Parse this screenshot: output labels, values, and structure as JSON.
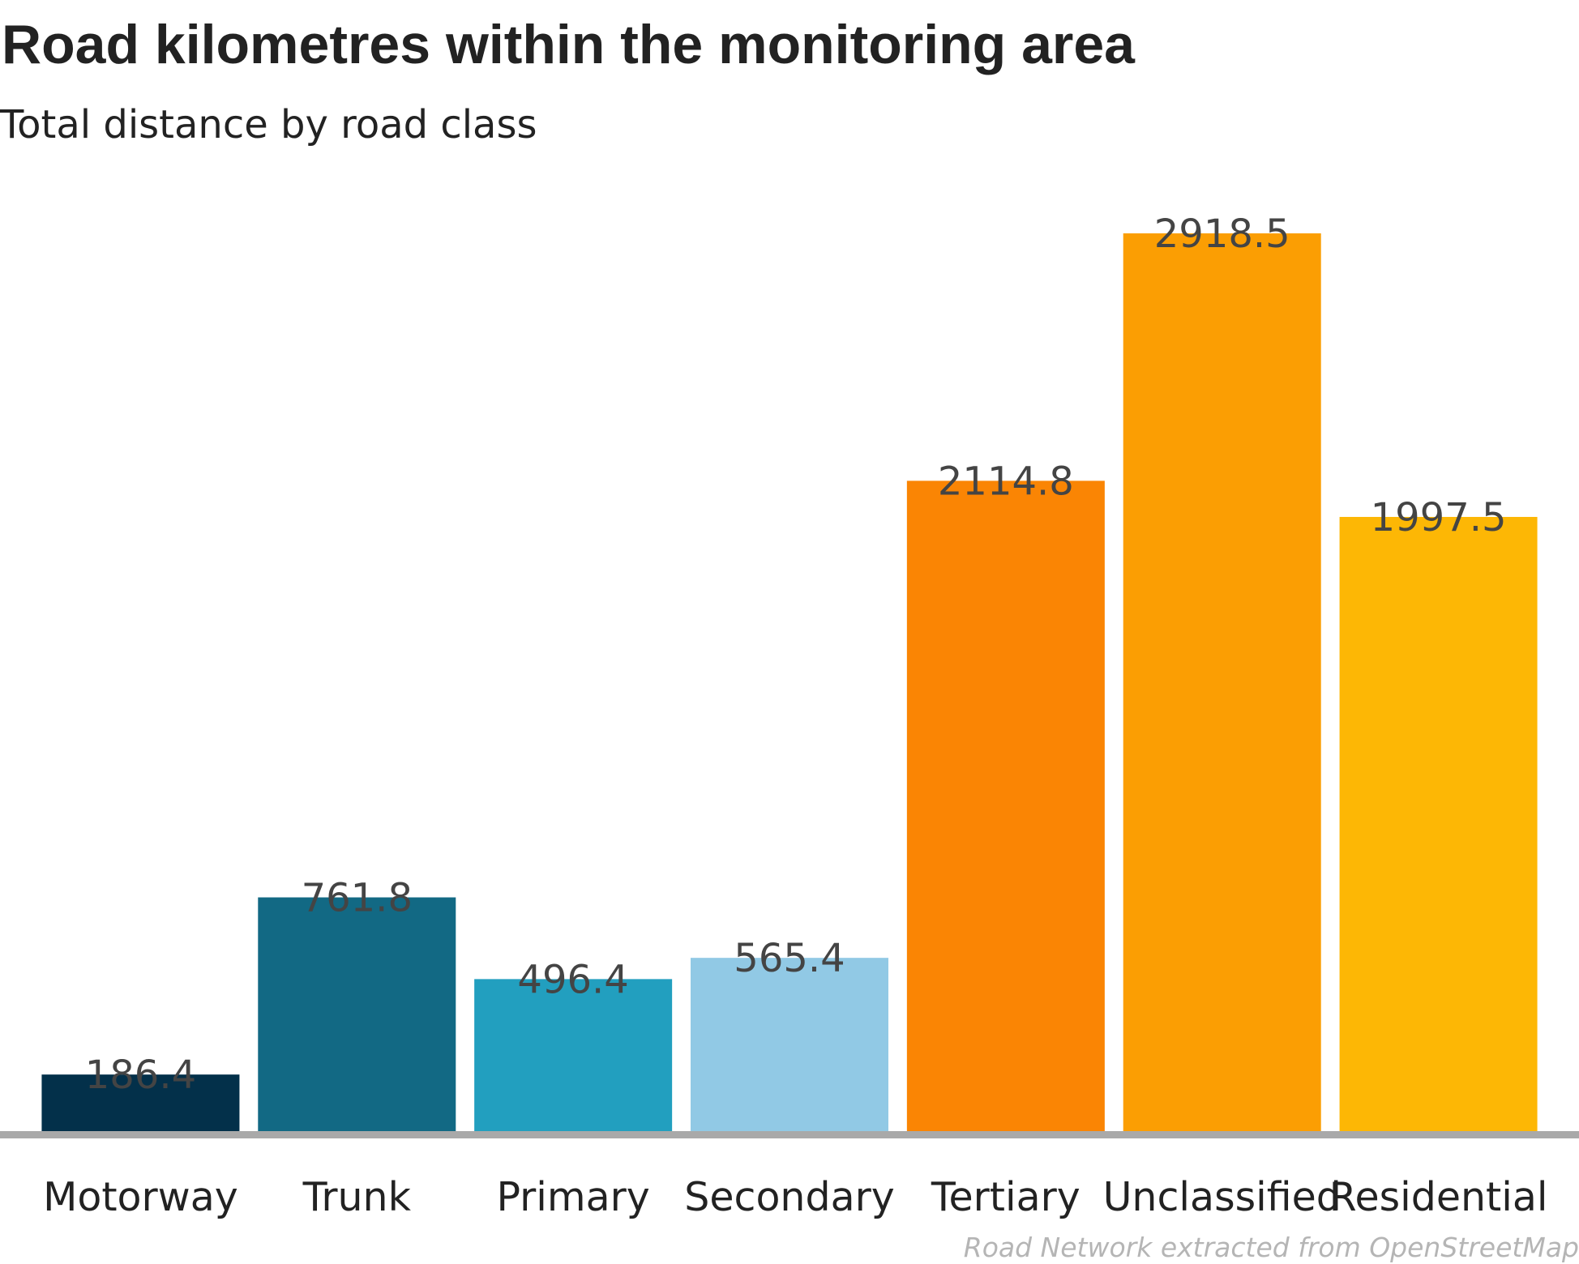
{
  "chart_data": {
    "type": "bar",
    "title": "Road kilometres within the monitoring area",
    "subtitle": "Total distance by road class",
    "caption": "Road Network extracted from OpenStreetMap",
    "categories": [
      "Motorway",
      "Trunk",
      "Primary",
      "Secondary",
      "Tertiary",
      "Unclassified",
      "Residential"
    ],
    "values": [
      186.4,
      761.8,
      496.4,
      565.4,
      2114.8,
      2918.5,
      1997.5
    ],
    "value_labels": [
      "186.4",
      "761.8",
      "496.4",
      "565.4",
      "2114.8",
      "2918.5",
      "1997.5"
    ],
    "colors": [
      "#03304a",
      "#126984",
      "#229fbf",
      "#91c9e5",
      "#fa8504",
      "#fb9e03",
      "#fdb705"
    ],
    "baseline_color": "#a9a9a9",
    "ylim": [
      0,
      2918.5
    ],
    "grid": false,
    "legend": "none"
  }
}
